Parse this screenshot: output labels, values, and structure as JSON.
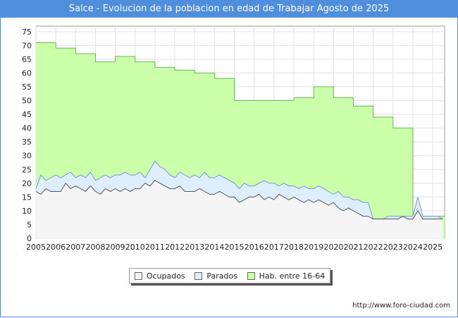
{
  "chart_data": {
    "type": "area",
    "title": "Salce - Evolucion de la poblacion en edad de Trabajar Agosto de 2025",
    "xlabel": "",
    "ylabel": "",
    "xlim": [
      2005,
      2025.6
    ],
    "ylim": [
      0,
      77
    ],
    "yticks": [
      0,
      5,
      10,
      15,
      20,
      25,
      30,
      35,
      40,
      45,
      50,
      55,
      60,
      65,
      70,
      75
    ],
    "xticks": [
      "2005",
      "2006",
      "2007",
      "2008",
      "2009",
      "2010",
      "2011",
      "2012",
      "2013",
      "2014",
      "2015",
      "2016",
      "2017",
      "2018",
      "2019",
      "2020",
      "2021",
      "2022",
      "2023",
      "2024",
      "2025"
    ],
    "grid": true,
    "legend_position": "bottom",
    "series": [
      {
        "name": "Hab. entre 16-64",
        "color": "#ccffaa",
        "stroke": "#66bb55",
        "step": true,
        "x": [
          2005,
          2006,
          2007,
          2008,
          2009,
          2010,
          2011,
          2012,
          2013,
          2014,
          2015,
          2016,
          2017,
          2018,
          2019,
          2020,
          2021,
          2022,
          2023,
          2024
        ],
        "values": [
          71,
          69,
          67,
          64,
          66,
          64,
          62,
          61,
          60,
          58,
          50,
          50,
          50,
          51,
          55,
          51,
          48,
          44,
          40,
          8
        ]
      },
      {
        "name": "Parados",
        "color": "#ddeeff",
        "stroke": "#7799cc",
        "step": false,
        "x": [
          2005,
          2005.25,
          2005.5,
          2005.75,
          2006,
          2006.25,
          2006.5,
          2006.75,
          2007,
          2007.25,
          2007.5,
          2007.75,
          2008,
          2008.25,
          2008.5,
          2008.75,
          2009,
          2009.25,
          2009.5,
          2009.75,
          2010,
          2010.25,
          2010.5,
          2010.75,
          2011,
          2011.25,
          2011.5,
          2011.75,
          2012,
          2012.25,
          2012.5,
          2012.75,
          2013,
          2013.25,
          2013.5,
          2013.75,
          2014,
          2014.25,
          2014.5,
          2014.75,
          2015,
          2015.25,
          2015.5,
          2015.75,
          2016,
          2016.25,
          2016.5,
          2016.75,
          2017,
          2017.25,
          2017.5,
          2017.75,
          2018,
          2018.25,
          2018.5,
          2018.75,
          2019,
          2019.25,
          2019.5,
          2019.75,
          2020,
          2020.25,
          2020.5,
          2020.75,
          2021,
          2021.25,
          2021.5,
          2021.75,
          2022,
          2022.25,
          2022.5,
          2022.75,
          2023,
          2023.25,
          2023.5,
          2023.75,
          2024,
          2024.25,
          2024.5,
          2024.75,
          2025,
          2025.25,
          2025.5
        ],
        "values": [
          18,
          23,
          21,
          22,
          23,
          22,
          23,
          24,
          22,
          23,
          22,
          24,
          21,
          22,
          23,
          22,
          23,
          23,
          24,
          23,
          23,
          24,
          22,
          25,
          28,
          26,
          25,
          23,
          22,
          24,
          23,
          22,
          23,
          22,
          24,
          22,
          22,
          23,
          22,
          21,
          20,
          18,
          20,
          19,
          19,
          20,
          21,
          20,
          20,
          19,
          20,
          19,
          19,
          18,
          19,
          18,
          18,
          19,
          18,
          17,
          16,
          17,
          15,
          15,
          14,
          14,
          13,
          13,
          7,
          7,
          7,
          8,
          8,
          8,
          8,
          8,
          8,
          15,
          8,
          8,
          8,
          8,
          7
        ]
      },
      {
        "name": "Ocupados",
        "color": "#f5f5f5",
        "stroke": "#555555",
        "step": false,
        "x": [
          2005,
          2005.25,
          2005.5,
          2005.75,
          2006,
          2006.25,
          2006.5,
          2006.75,
          2007,
          2007.25,
          2007.5,
          2007.75,
          2008,
          2008.25,
          2008.5,
          2008.75,
          2009,
          2009.25,
          2009.5,
          2009.75,
          2010,
          2010.25,
          2010.5,
          2010.75,
          2011,
          2011.25,
          2011.5,
          2011.75,
          2012,
          2012.25,
          2012.5,
          2012.75,
          2013,
          2013.25,
          2013.5,
          2013.75,
          2014,
          2014.25,
          2014.5,
          2014.75,
          2015,
          2015.25,
          2015.5,
          2015.75,
          2016,
          2016.25,
          2016.5,
          2016.75,
          2017,
          2017.25,
          2017.5,
          2017.75,
          2018,
          2018.25,
          2018.5,
          2018.75,
          2019,
          2019.25,
          2019.5,
          2019.75,
          2020,
          2020.25,
          2020.5,
          2020.75,
          2021,
          2021.25,
          2021.5,
          2021.75,
          2022,
          2022.25,
          2022.5,
          2022.75,
          2023,
          2023.25,
          2023.5,
          2023.75,
          2024,
          2024.25,
          2024.5,
          2024.75,
          2025,
          2025.25,
          2025.5
        ],
        "values": [
          17,
          16,
          18,
          17,
          17,
          17,
          20,
          18,
          19,
          18,
          17,
          19,
          17,
          16,
          18,
          17,
          18,
          17,
          18,
          17,
          18,
          18,
          20,
          19,
          21,
          20,
          19,
          18,
          18,
          19,
          17,
          17,
          17,
          18,
          17,
          16,
          16,
          17,
          16,
          15,
          15,
          13,
          14,
          15,
          15,
          16,
          14,
          15,
          14,
          16,
          15,
          14,
          15,
          14,
          13,
          14,
          13,
          14,
          13,
          12,
          13,
          11,
          10,
          11,
          10,
          9,
          8,
          8,
          7,
          7,
          7,
          7,
          7,
          7,
          8,
          7,
          7,
          10,
          7,
          7,
          7,
          7,
          7
        ]
      }
    ]
  },
  "legend": {
    "items": [
      "Ocupados",
      "Parados",
      "Hab. entre 16-64"
    ]
  },
  "source_url": "http://www.foro-ciudad.com"
}
